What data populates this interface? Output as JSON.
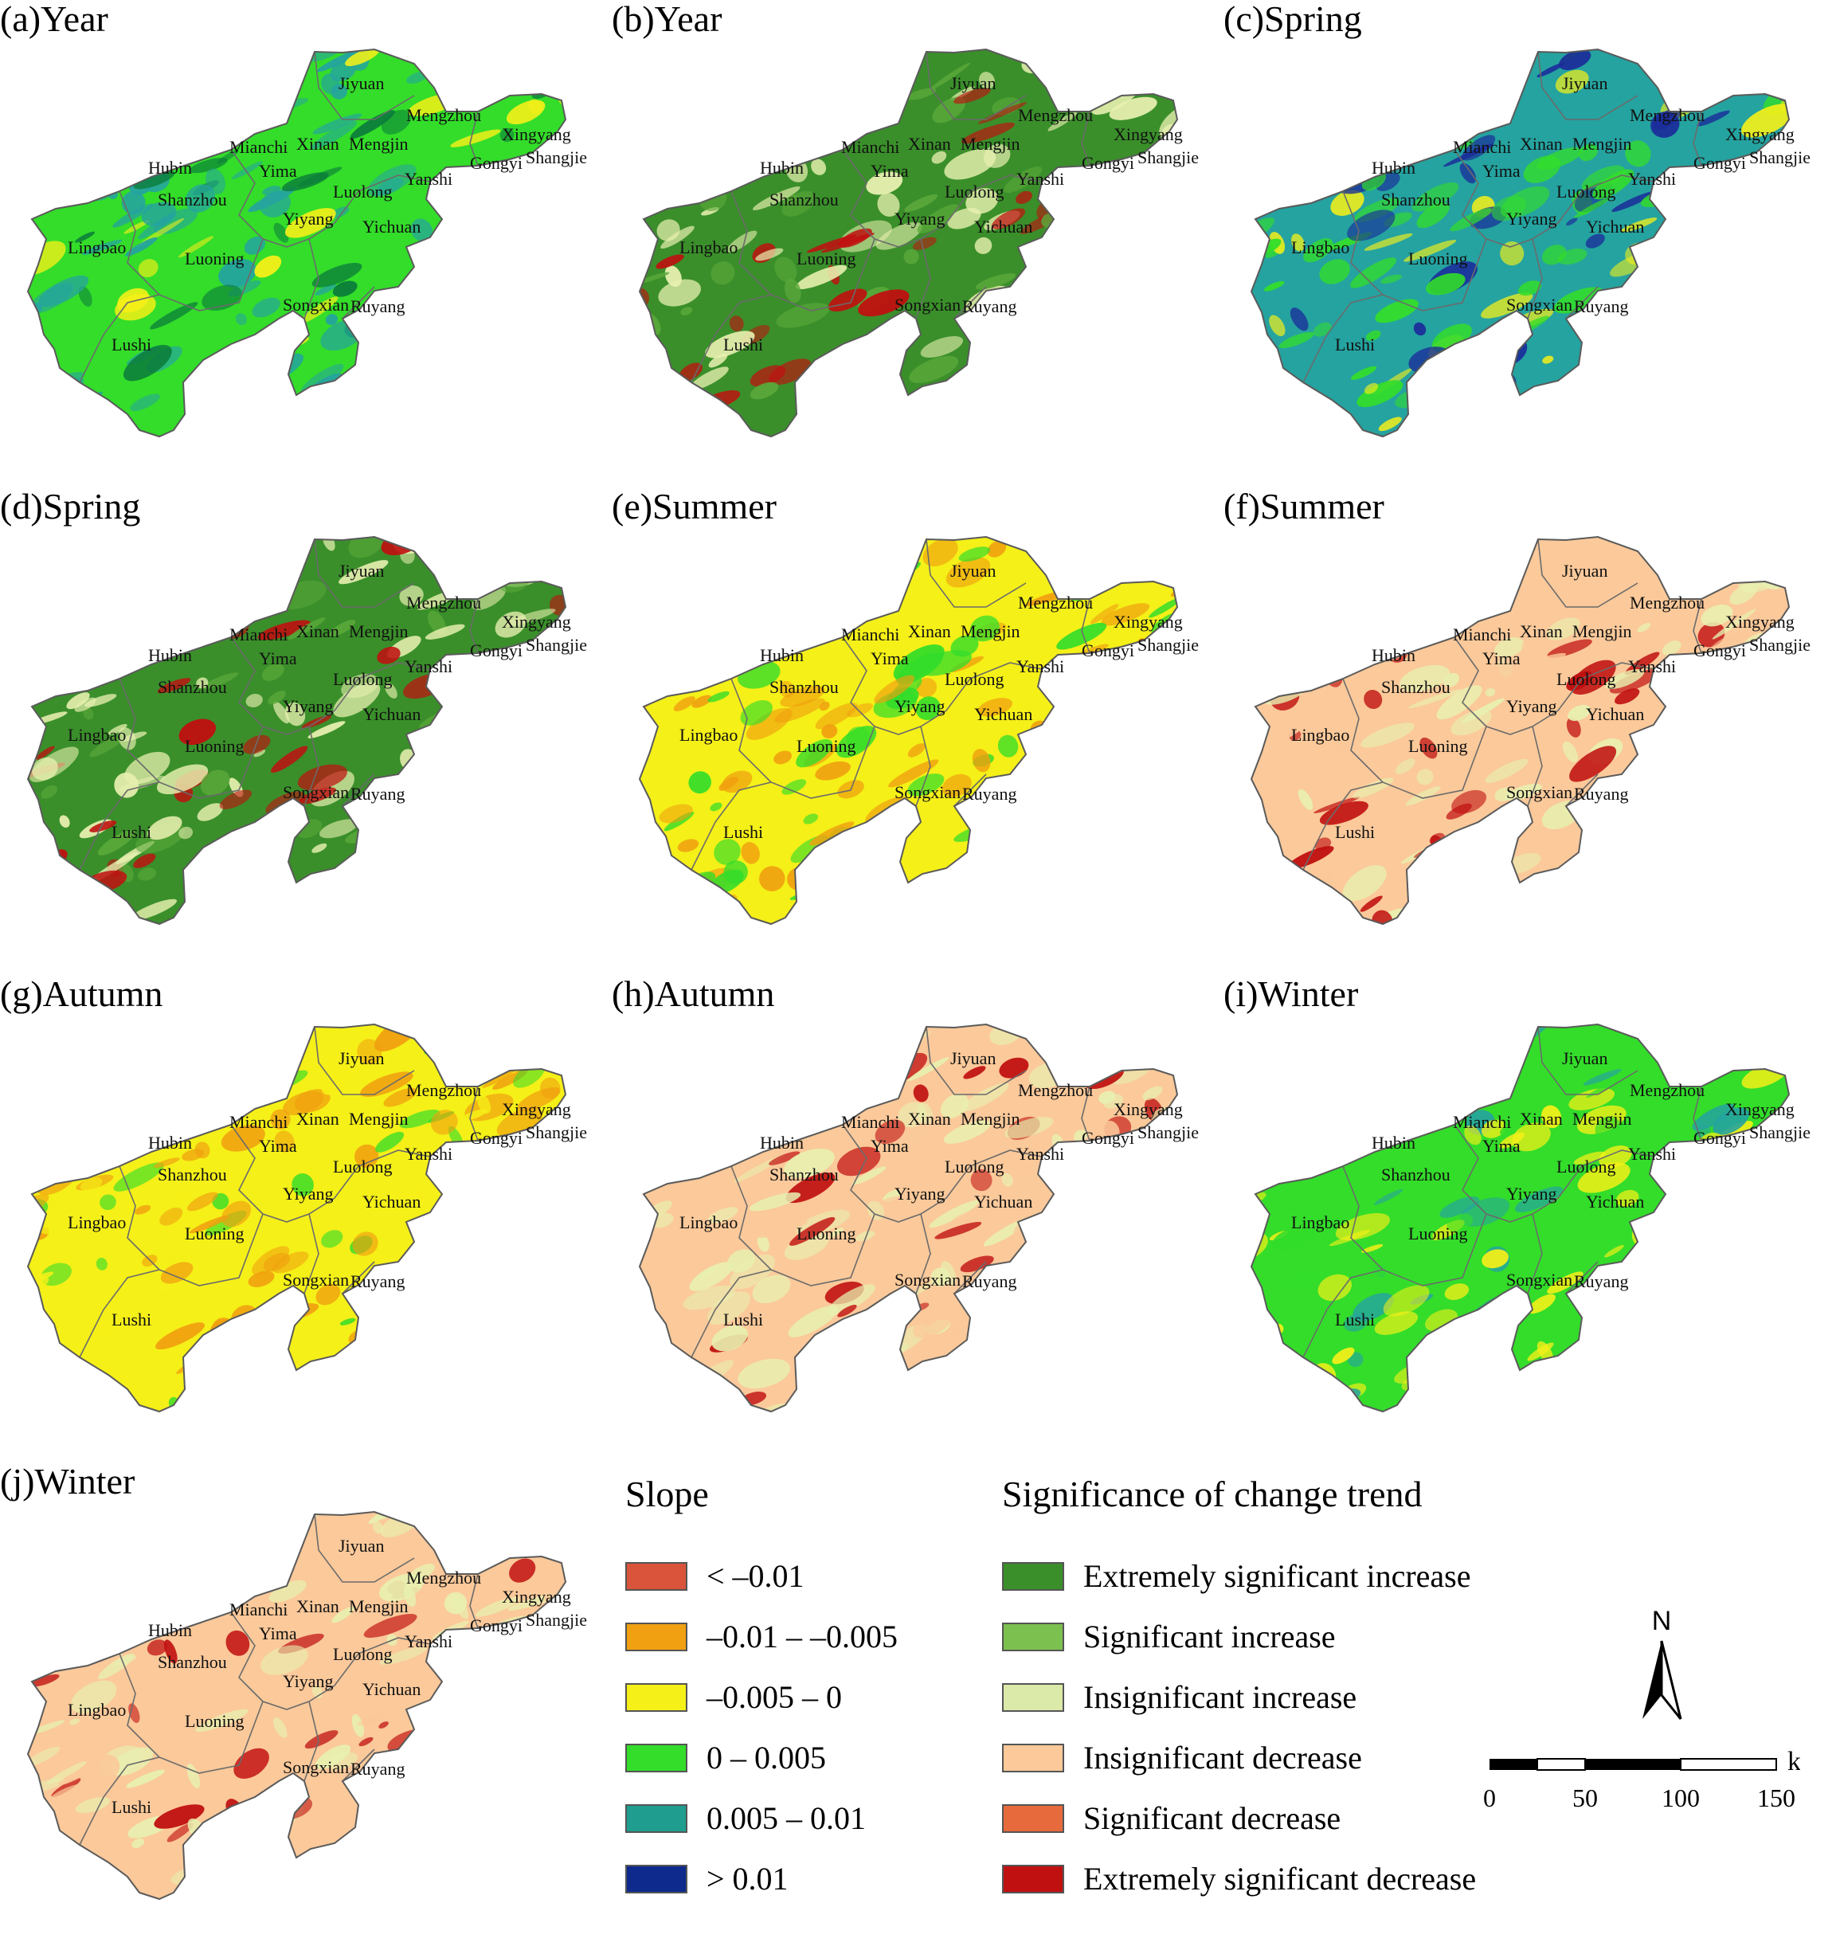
{
  "panels": [
    {
      "title": "(a)Year",
      "palette": "slope_year"
    },
    {
      "title": "(b)Year",
      "palette": "sig_year"
    },
    {
      "title": "(c)Spring",
      "palette": "slope_spring"
    },
    {
      "title": "(d)Spring",
      "palette": "sig_spring"
    },
    {
      "title": "(e)Summer",
      "palette": "slope_summer"
    },
    {
      "title": "(f)Summer",
      "palette": "sig_summer"
    },
    {
      "title": "(g)Autumn",
      "palette": "slope_autumn"
    },
    {
      "title": "(h)Autumn",
      "palette": "sig_autumn"
    },
    {
      "title": "(i)Winter",
      "palette": "slope_winter"
    },
    {
      "title": "(j)Winter",
      "palette": "sig_winter"
    }
  ],
  "place_names": [
    "Jiyuan",
    "Mengzhou",
    "Xingyang",
    "Shangjie",
    "Gongyi",
    "Mianchi",
    "Xinan",
    "Mengjin",
    "Hubin",
    "Yima",
    "Yanshi",
    "Luolong",
    "Shanzhou",
    "Yiyang",
    "Yichuan",
    "Lingbao",
    "Luoning",
    "Songxian",
    "Ruyang",
    "Lushi"
  ],
  "palettes": {
    "slope_year": {
      "base": "#33dd2a",
      "patches": [
        "#25a3a0",
        "#f5f018",
        "#25a3a0",
        "#0b7d3a"
      ]
    },
    "sig_year": {
      "base": "#3a8f2a",
      "patches": [
        "#e8f0b0",
        "#c01010",
        "#e8f0b0",
        "#5aa83a"
      ]
    },
    "slope_spring": {
      "base": "#25a3a0",
      "patches": [
        "#1a2b9a",
        "#33dd2a",
        "#f5f018",
        "#33dd2a"
      ]
    },
    "sig_spring": {
      "base": "#3a8f2a",
      "patches": [
        "#e8f0b0",
        "#c01010",
        "#5aa83a",
        "#e8f0b0"
      ]
    },
    "slope_summer": {
      "base": "#f5f018",
      "patches": [
        "#f0a010",
        "#33dd2a",
        "#f0a010",
        "#33dd2a"
      ]
    },
    "sig_summer": {
      "base": "#fbc99a",
      "patches": [
        "#e8f0b0",
        "#c01010",
        "#fbc99a",
        "#e8f0b0"
      ]
    },
    "slope_autumn": {
      "base": "#f5f018",
      "patches": [
        "#f0a010",
        "#33dd2a",
        "#f0a010",
        "#f5f018"
      ]
    },
    "sig_autumn": {
      "base": "#fbc99a",
      "patches": [
        "#e8f0b0",
        "#c01010",
        "#fbc99a",
        "#e8f0b0"
      ]
    },
    "slope_winter": {
      "base": "#33dd2a",
      "patches": [
        "#f5f018",
        "#25a3a0",
        "#f5f018",
        "#33dd2a"
      ]
    },
    "sig_winter": {
      "base": "#fbc99a",
      "patches": [
        "#e8f0b0",
        "#c01010",
        "#e8f0b0",
        "#fbc99a"
      ]
    }
  },
  "legend_slope": {
    "title": "Slope",
    "items": [
      {
        "label": "< –0.01",
        "color": "#d9543a"
      },
      {
        "label": "–0.01 – –0.005",
        "color": "#f0a010"
      },
      {
        "label": "–0.005 – 0",
        "color": "#f5f018"
      },
      {
        "label": "0 – 0.005",
        "color": "#33dd2a"
      },
      {
        "label": "0.005 – 0.01",
        "color": "#1f9e8f"
      },
      {
        "label": "> 0.01",
        "color": "#0d2a8c"
      }
    ]
  },
  "legend_significance": {
    "title": "Significance of change trend",
    "items": [
      {
        "label": "Extremely significant increase",
        "color": "#3a8f2a"
      },
      {
        "label": "Significant increase",
        "color": "#7cc04f"
      },
      {
        "label": "Insignificant increase",
        "color": "#dbeaa8"
      },
      {
        "label": "Insignificant decrease",
        "color": "#fbc99a"
      },
      {
        "label": "Significant decrease",
        "color": "#e66a3c"
      },
      {
        "label": "Extremely significant decrease",
        "color": "#c01010"
      }
    ]
  },
  "north_arrow": {
    "label": "N"
  },
  "scale_bar": {
    "unit": "km",
    "ticks": [
      "0",
      "50",
      "100",
      "150"
    ]
  }
}
